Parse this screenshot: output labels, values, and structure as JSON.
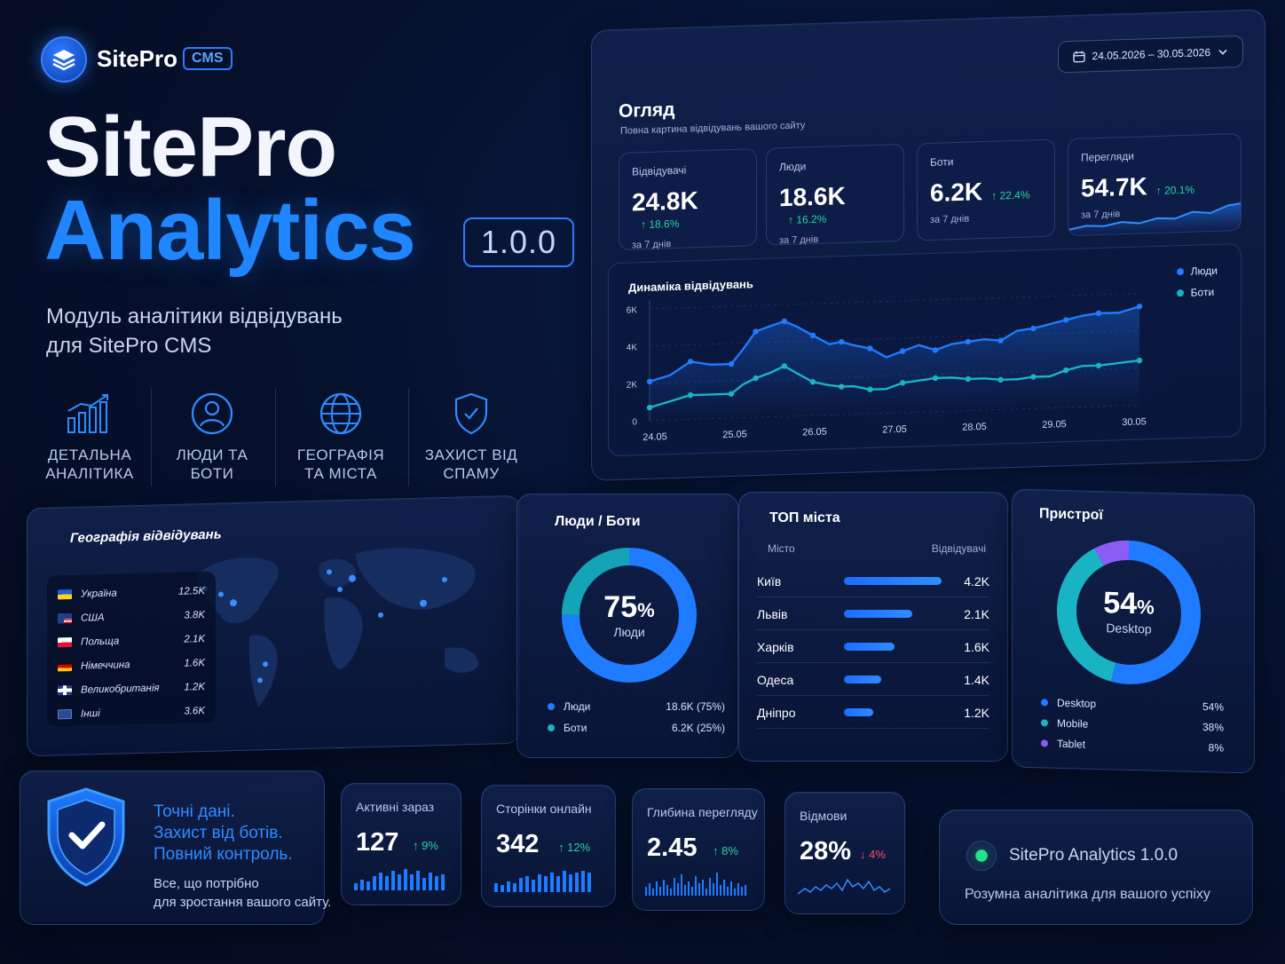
{
  "brand": {
    "name": "SitePro",
    "badge": "CMS"
  },
  "hero": {
    "line1": "SitePro",
    "line2": "Analytics",
    "version": "1.0.0",
    "subtitle_line1": "Модуль аналітики відвідувань",
    "subtitle_line2": "для SitePro CMS"
  },
  "features": [
    {
      "line1": "ДЕТАЛЬНА",
      "line2": "АНАЛІТИКА",
      "icon": "bar-chart-icon"
    },
    {
      "line1": "ЛЮДИ ТА",
      "line2": "БОТИ",
      "icon": "user-icon"
    },
    {
      "line1": "ГЕОГРАФІЯ",
      "line2": "ТА МІСТА",
      "icon": "globe-icon"
    },
    {
      "line1": "ЗАХИСТ ВІД",
      "line2": "СПАМУ",
      "icon": "shield-icon"
    }
  ],
  "overview": {
    "title": "Огляд",
    "subtitle": "Повна картина відвідувань вашого сайту",
    "date_range": "24.05.2026 – 30.05.2026",
    "kpis": [
      {
        "title": "Відвідувачі",
        "value": "24.8K",
        "delta": "18.6%",
        "period": "за 7 днів"
      },
      {
        "title": "Люди",
        "value": "18.6K",
        "delta": "16.2%",
        "period": "за 7 днів"
      },
      {
        "title": "Боти",
        "value": "6.2K",
        "delta": "22.4%",
        "period": "за 7 днів"
      },
      {
        "title": "Перегляди",
        "value": "54.7K",
        "delta": "20.1%",
        "period": "за 7 днів"
      }
    ]
  },
  "dynamics": {
    "title": "Динаміка відвідувань",
    "legend": [
      "Люди",
      "Боти"
    ]
  },
  "chart_data": {
    "type": "line",
    "title": "Динаміка відвідувань",
    "x_ticks": [
      "24.05",
      "25.05",
      "26.05",
      "27.05",
      "28.05",
      "29.05",
      "30.05"
    ],
    "y_ticks": [
      "0",
      "2K",
      "4K",
      "6K"
    ],
    "ylim": [
      0,
      6000
    ],
    "x": [
      0,
      0.5,
      1,
      1.5,
      2,
      2.3,
      2.6,
      3,
      3.3,
      3.6,
      4,
      4.4,
      4.7,
      5,
      5.4,
      5.8,
      6.2,
      6.6,
      7,
      7.4,
      7.8,
      8.2,
      8.6,
      9,
      9.4,
      9.8,
      10.2,
      10.6,
      11,
      11.5,
      12
    ],
    "series": [
      {
        "name": "Люди",
        "color": "#1f7bff",
        "values": [
          2100,
          2400,
          3100,
          2900,
          2900,
          3700,
          4600,
          4900,
          5100,
          4800,
          4300,
          3800,
          3900,
          3700,
          3500,
          3000,
          3300,
          3600,
          3300,
          3600,
          3700,
          3800,
          3700,
          4200,
          4300,
          4500,
          4700,
          4900,
          5000,
          5000,
          5300
        ]
      },
      {
        "name": "Боти",
        "color": "#19b4c4",
        "values": [
          700,
          1000,
          1300,
          1300,
          1300,
          1800,
          2100,
          2400,
          2700,
          2300,
          1800,
          1600,
          1500,
          1500,
          1300,
          1300,
          1600,
          1700,
          1800,
          1800,
          1700,
          1700,
          1600,
          1600,
          1700,
          1700,
          2000,
          2200,
          2200,
          2300,
          2400
        ]
      }
    ],
    "legend_position": "top-right",
    "grid": true
  },
  "geo": {
    "title": "Географія відвідувань",
    "countries": [
      {
        "name": "Україна",
        "value": "12.5K"
      },
      {
        "name": "США",
        "value": "3.8K"
      },
      {
        "name": "Польща",
        "value": "2.1K"
      },
      {
        "name": "Німеччина",
        "value": "1.6K"
      },
      {
        "name": "Великобританія",
        "value": "1.2K"
      },
      {
        "name": "Інші",
        "value": "3.6K"
      }
    ]
  },
  "people_bots": {
    "title": "Люди / Боти",
    "center_value": "75",
    "center_unit": "%",
    "center_label": "Люди",
    "people_share": 0.75,
    "rows": [
      {
        "name": "Люди",
        "value": "18.6K (75%)",
        "color": "#1f7bff"
      },
      {
        "name": "Боти",
        "value": "6.2K (25%)",
        "color": "#19b4c4"
      }
    ]
  },
  "cities": {
    "title": "ТОП міста",
    "col_city": "Місто",
    "col_visitors": "Відвідувачі",
    "rows": [
      {
        "name": "Київ",
        "value": "4.2K",
        "share": 1.0
      },
      {
        "name": "Львів",
        "value": "2.1K",
        "share": 0.7
      },
      {
        "name": "Харків",
        "value": "1.6K",
        "share": 0.52
      },
      {
        "name": "Одеса",
        "value": "1.4K",
        "share": 0.38
      },
      {
        "name": "Дніпро",
        "value": "1.2K",
        "share": 0.3
      }
    ]
  },
  "devices": {
    "title": "Пристрої",
    "center_value": "54",
    "center_unit": "%",
    "center_label": "Desktop",
    "rows": [
      {
        "name": "Desktop",
        "value": "54%",
        "color": "#1f7bff",
        "share": 0.54
      },
      {
        "name": "Mobile",
        "value": "38%",
        "color": "#19b4c4",
        "share": 0.38
      },
      {
        "name": "Tablet",
        "value": "8%",
        "color": "#8b5cf6",
        "share": 0.08
      }
    ]
  },
  "promo": {
    "line1": "Точні дані.",
    "line2": "Захист від ботів.",
    "line3": "Повний контроль.",
    "sub1": "Все, що потрібно",
    "sub2": "для зростання вашого сайту."
  },
  "minis": [
    {
      "title": "Активні зараз",
      "value": "127",
      "delta": "9%",
      "dir": "up"
    },
    {
      "title": "Сторінки онлайн",
      "value": "342",
      "delta": "12%",
      "dir": "up"
    },
    {
      "title": "Глибина перегляду",
      "value": "2.45",
      "delta": "8%",
      "dir": "up"
    },
    {
      "title": "Відмови",
      "value": "28%",
      "delta": "4%",
      "dir": "down"
    }
  ],
  "footer_card": {
    "title": "SitePro Analytics 1.0.0",
    "subtitle": "Розумна аналітика для вашого успіху"
  }
}
